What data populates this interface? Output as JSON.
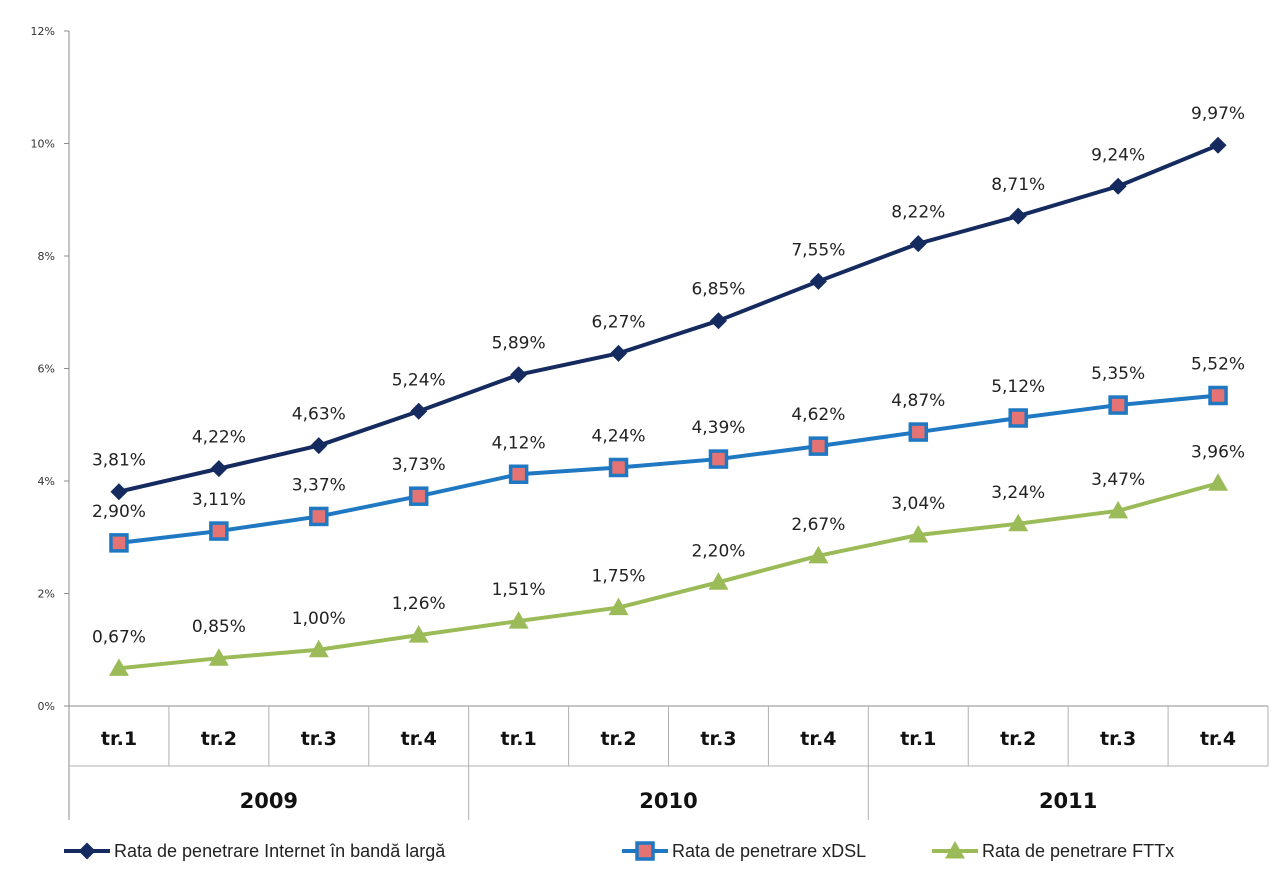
{
  "chart_data": {
    "type": "line",
    "title": "",
    "xlabel": "",
    "ylabel": "",
    "ylim": [
      0,
      12
    ],
    "y_tick_step": 2,
    "y_tick_labels": [
      "0%",
      "2%",
      "4%",
      "6%",
      "8%",
      "10%",
      "12%"
    ],
    "grid": false,
    "legend_position": "bottom",
    "categories": [
      "tr.1",
      "tr.2",
      "tr.3",
      "tr.4",
      "tr.1",
      "tr.2",
      "tr.3",
      "tr.4",
      "tr.1",
      "tr.2",
      "tr.3",
      "tr.4"
    ],
    "groups": [
      {
        "label": "2009",
        "count": 4
      },
      {
        "label": "2010",
        "count": 4
      },
      {
        "label": "2011",
        "count": 4
      }
    ],
    "series": [
      {
        "name": "Rata de penetrare Internet în bandă largă",
        "color": "#152a5e",
        "marker": "diamond",
        "values": [
          3.81,
          4.22,
          4.63,
          5.24,
          5.89,
          6.27,
          6.85,
          7.55,
          8.22,
          8.71,
          9.24,
          9.97
        ],
        "labels": [
          "3,81%",
          "4,22%",
          "4,63%",
          "5,24%",
          "5,89%",
          "6,27%",
          "6,85%",
          "7,55%",
          "8,22%",
          "8,71%",
          "9,24%",
          "9,97%"
        ]
      },
      {
        "name": "Rata de penetrare xDSL",
        "color": "#1f78c1",
        "marker": "square",
        "marker_fill": "#e57373",
        "values": [
          2.9,
          3.11,
          3.37,
          3.73,
          4.12,
          4.24,
          4.39,
          4.62,
          4.87,
          5.12,
          5.35,
          5.52
        ],
        "labels": [
          "2,90%",
          "3,11%",
          "3,37%",
          "3,73%",
          "4,12%",
          "4,24%",
          "4,39%",
          "4,62%",
          "4,87%",
          "5,12%",
          "5,35%",
          "5,52%"
        ]
      },
      {
        "name": "Rata de penetrare FTTx",
        "color": "#9bbb59",
        "marker": "triangle",
        "values": [
          0.67,
          0.85,
          1.0,
          1.26,
          1.51,
          1.75,
          2.2,
          2.67,
          3.04,
          3.24,
          3.47,
          3.96
        ],
        "labels": [
          "0,67%",
          "0,85%",
          "1,00%",
          "1,26%",
          "1,51%",
          "1,75%",
          "2,20%",
          "2,67%",
          "3,04%",
          "3,24%",
          "3,47%",
          "3,96%"
        ]
      }
    ]
  }
}
